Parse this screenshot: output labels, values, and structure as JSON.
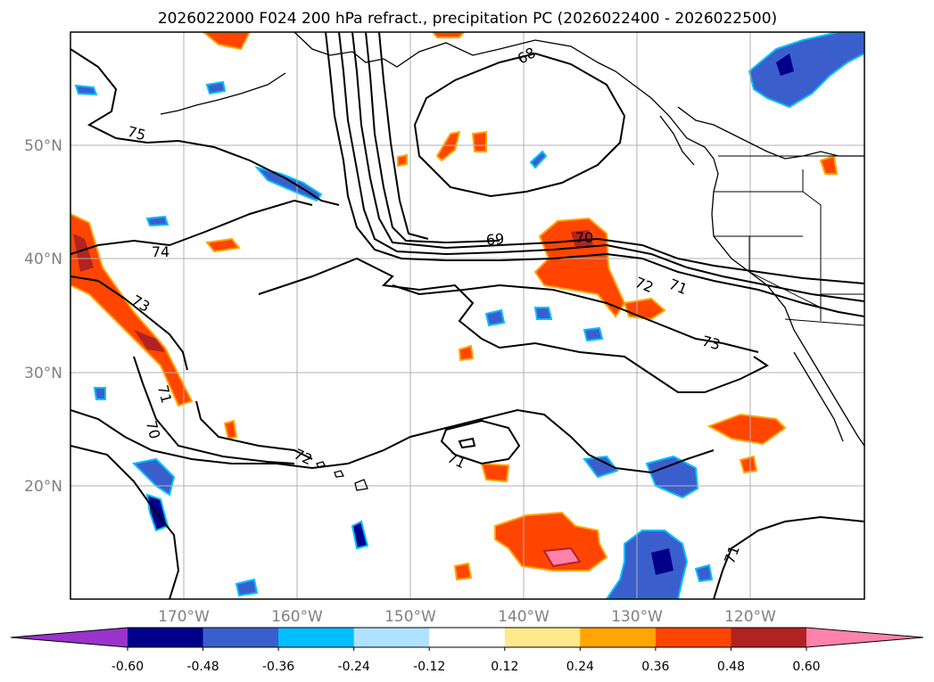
{
  "title": "2026022000 F024 200 hPa refract., precipitation PC (2026022400 - 2026022500)",
  "map": {
    "lon_ticks": [
      "170°W",
      "160°W",
      "150°W",
      "140°W",
      "130°W",
      "120°W"
    ],
    "lat_ticks": [
      "50°N",
      "40°N",
      "30°N",
      "20°N"
    ],
    "gridlines": true
  },
  "contour_labels": [
    "68",
    "75",
    "74",
    "73",
    "69",
    "70",
    "72",
    "71",
    "73",
    "71",
    "70",
    "72",
    "71",
    "71"
  ],
  "colorbar": {
    "ticks": [
      "-0.60",
      "-0.48",
      "-0.36",
      "-0.24",
      "-0.12",
      "0.12",
      "0.24",
      "0.36",
      "0.48",
      "0.60"
    ],
    "colors": [
      "#9933cc",
      "#00008b",
      "#3a5fcd",
      "#00bfff",
      "#b0e2ff",
      "#ffffff",
      "#ffe98c",
      "#ffa500",
      "#ff4500",
      "#b22222",
      "#ff82ab"
    ]
  }
}
